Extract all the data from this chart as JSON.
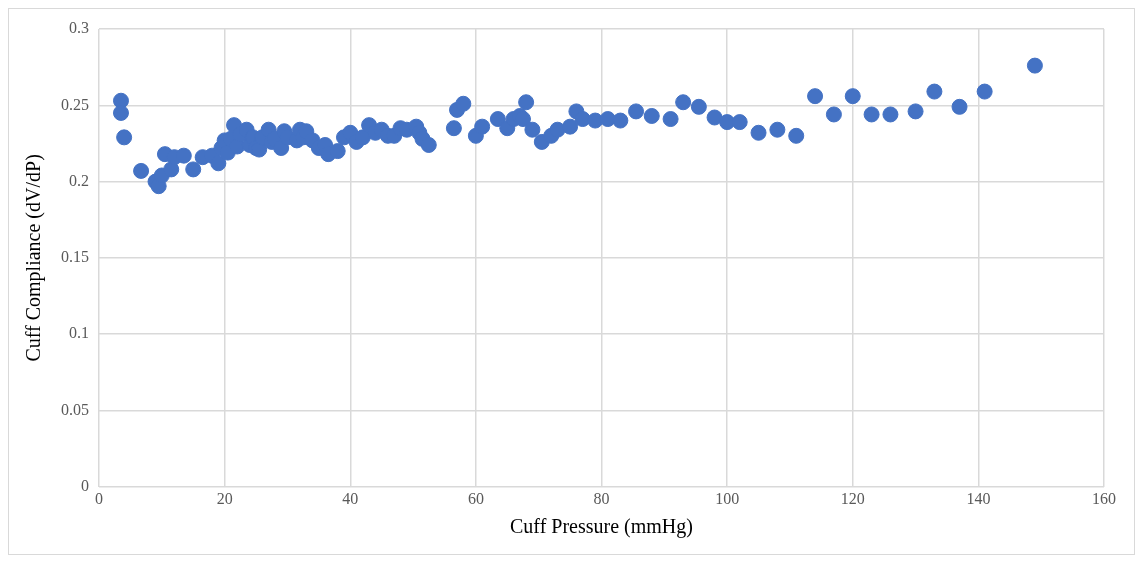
{
  "chart_data": {
    "type": "scatter",
    "xlabel": "Cuff Pressure (mmHg)",
    "ylabel": "Cuff Compliance (dV/dP)",
    "x": [
      3.5,
      3.5,
      4,
      6.7,
      9,
      9.5,
      10,
      10.5,
      11.5,
      12,
      13.5,
      15,
      16.5,
      18,
      19,
      19.5,
      20,
      20.5,
      21,
      21.5,
      22,
      22.5,
      23.5,
      24,
      24.5,
      25,
      25.5,
      26,
      27,
      27.5,
      28,
      29,
      29.5,
      30,
      31.5,
      32,
      32.5,
      33,
      34,
      35,
      36,
      36.5,
      38,
      39,
      40,
      41,
      42,
      43,
      44,
      45,
      46,
      47,
      48,
      49,
      50.5,
      51,
      51.5,
      52.5,
      56.5,
      57,
      58,
      60,
      61,
      63.5,
      65,
      66,
      67,
      67.5,
      68,
      69,
      70.5,
      72,
      73,
      75,
      76,
      77,
      79,
      81,
      83,
      85.5,
      88,
      91,
      93,
      95.5,
      98,
      100,
      102,
      105,
      108,
      111,
      114,
      117,
      120,
      123,
      126,
      130,
      133,
      137,
      141,
      149
    ],
    "series": [
      {
        "color": "#4472c4",
        "values": [
          0.253,
          0.245,
          0.229,
          0.207,
          0.2,
          0.197,
          0.204,
          0.218,
          0.208,
          0.216,
          0.217,
          0.208,
          0.216,
          0.217,
          0.212,
          0.222,
          0.227,
          0.219,
          0.228,
          0.237,
          0.223,
          0.231,
          0.234,
          0.224,
          0.229,
          0.222,
          0.221,
          0.229,
          0.234,
          0.226,
          0.228,
          0.222,
          0.233,
          0.229,
          0.227,
          0.234,
          0.229,
          0.233,
          0.227,
          0.222,
          0.224,
          0.218,
          0.22,
          0.229,
          0.232,
          0.226,
          0.229,
          0.237,
          0.232,
          0.234,
          0.23,
          0.23,
          0.235,
          0.234,
          0.236,
          0.232,
          0.228,
          0.224,
          0.235,
          0.247,
          0.251,
          0.23,
          0.236,
          0.241,
          0.235,
          0.241,
          0.243,
          0.241,
          0.252,
          0.234,
          0.226,
          0.23,
          0.234,
          0.236,
          0.246,
          0.241,
          0.24,
          0.241,
          0.24,
          0.246,
          0.243,
          0.241,
          0.252,
          0.249,
          0.242,
          0.239,
          0.239,
          0.232,
          0.234,
          0.23,
          0.256,
          0.244,
          0.256,
          0.244,
          0.244,
          0.246,
          0.259,
          0.249,
          0.259,
          0.276
        ]
      }
    ],
    "xlim": [
      0,
      160
    ],
    "xticks": [
      0,
      20,
      40,
      60,
      80,
      100,
      120,
      140,
      160
    ],
    "ylim": [
      0,
      0.3
    ],
    "yticks": [
      0,
      0.05,
      0.1,
      0.15,
      0.2,
      0.25,
      0.3
    ],
    "grid": true,
    "legend": false,
    "marker": "circle"
  }
}
